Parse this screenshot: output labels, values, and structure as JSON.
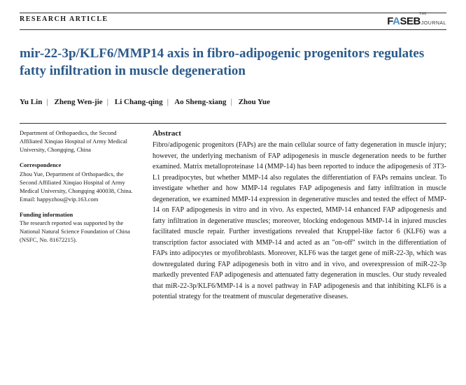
{
  "header": {
    "article_type": "RESEARCH ARTICLE",
    "logo_the": "THE",
    "logo_main": "F SEB",
    "logo_a": "A",
    "logo_sub": "JOURNAL"
  },
  "title": "mir-22-3p/KLF6/MMP14 axis in fibro-adipogenic progenitors regulates fatty infiltration in muscle degeneration",
  "authors": [
    "Yu Lin",
    "Zheng Wen-jie",
    "Li Chang-qing",
    "Ao Sheng-xiang",
    "Zhou Yue"
  ],
  "affiliation": "Department of Orthopaedics, the Second Affiliated Xinqiao Hospital of Army Medical University, Chongqing, China",
  "correspondence": {
    "heading": "Correspondence",
    "body": "Zhou Yue, Department of Orthopaedics, the Second Affiliated Xinqiao Hospital of Army Medical University, Chongqing 400038, China.",
    "email": "Email: happyzhou@vip.163.com"
  },
  "funding": {
    "heading": "Funding information",
    "body": "The research reported was supported by the National Natural Science Foundation of China (NSFC, No. 81672215)."
  },
  "abstract": {
    "heading": "Abstract",
    "body": "Fibro/adipogenic progenitors (FAPs) are the main cellular source of fatty degeneration in muscle injury; however, the underlying mechanism of FAP adipogenesis in muscle degeneration needs to be further examined. Matrix metalloproteinase 14 (MMP-14) has been reported to induce the adipogenesis of 3T3-L1 preadipocytes, but whether MMP-14 also regulates the differentiation of FAPs remains unclear. To investigate whether and how MMP-14 regulates FAP adipogenesis and fatty infiltration in muscle degeneration, we examined MMP-14 expression in degenerative muscles and tested the effect of MMP-14 on FAP adipogenesis in vitro and in vivo. As expected, MMP-14 enhanced FAP adipogenesis and fatty infiltration in degenerative muscles; moreover, blocking endogenous MMP-14 in injured muscles facilitated muscle repair. Further investigations revealed that Kruppel-like factor 6 (KLF6) was a transcription factor associated with MMP-14 and acted as an \"on-off\" switch in the differentiation of FAPs into adipocytes or myofibroblasts. Moreover, KLF6 was the target gene of miR-22-3p, which was downregulated during FAP adipogenesis both in vitro and in vivo, and overexpression of miR-22-3p markedly prevented FAP adipogenesis and attenuated fatty degeneration in muscles. Our study revealed that miR-22-3p/KLF6/MMP-14 is a novel pathway in FAP adipogenesis and that inhibiting KLF6 is a potential strategy for the treatment of muscular degenerative diseases."
  },
  "colors": {
    "title": "#2b5a8a",
    "logo_accent": "#4a8fc7",
    "text": "#1a1a1a",
    "border": "#333333"
  }
}
